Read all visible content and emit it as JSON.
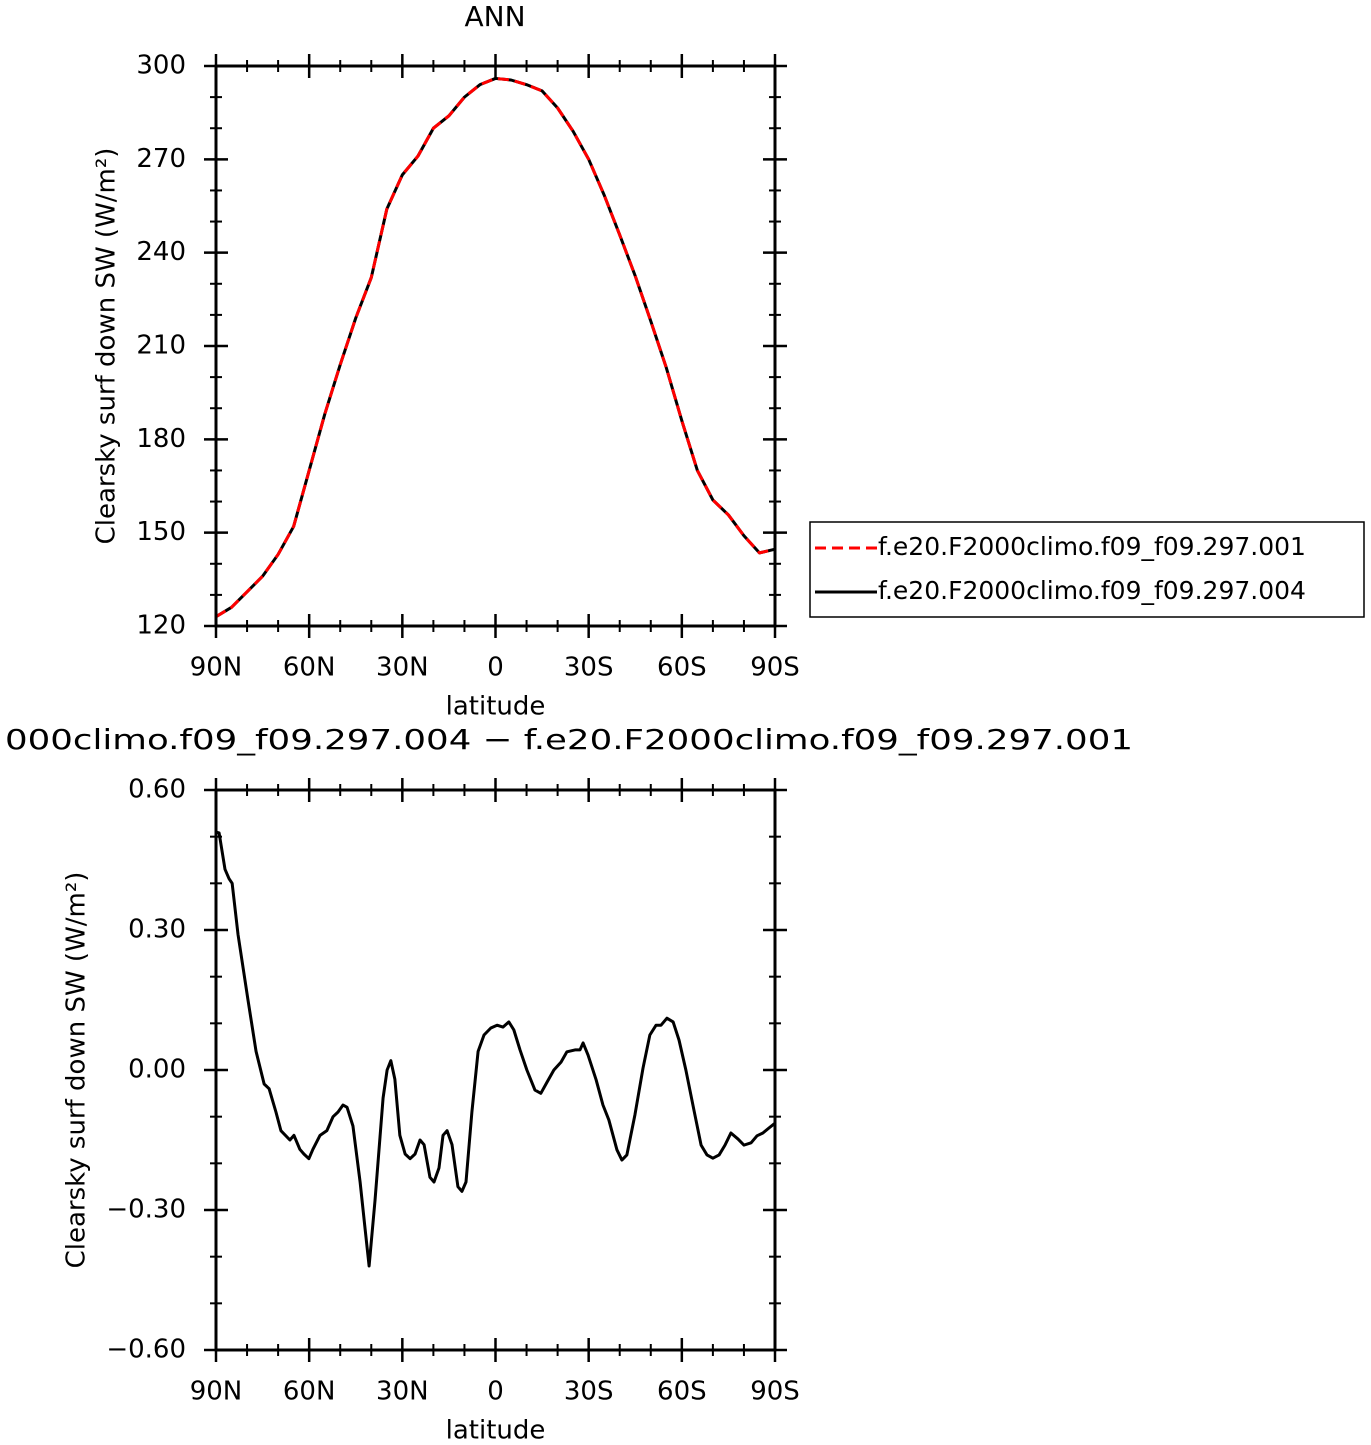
{
  "chart_data": [
    {
      "type": "line",
      "title": "ANN",
      "xlabel": "latitude",
      "ylabel": "Clearsky surf down SW (W/m²)",
      "x": [
        90,
        85,
        80,
        75,
        70,
        65,
        60,
        55,
        50,
        45,
        40,
        35,
        30,
        25,
        20,
        15,
        10,
        5,
        0,
        -5,
        -10,
        -15,
        -20,
        -25,
        -30,
        -35,
        -40,
        -45,
        -50,
        -55,
        -60,
        -65,
        -70,
        -75,
        -80,
        -85,
        -90
      ],
      "xlim": [
        90,
        -90
      ],
      "xticks": [
        {
          "value": 90,
          "label": "90N"
        },
        {
          "value": 60,
          "label": "60N"
        },
        {
          "value": 30,
          "label": "30N"
        },
        0,
        {
          "value": -30,
          "label": "30S"
        },
        {
          "value": -60,
          "label": "60S"
        },
        {
          "value": -90,
          "label": "90S"
        }
      ],
      "xminorticks": [
        80,
        70,
        50,
        40,
        20,
        10,
        -10,
        -20,
        -40,
        -50,
        -70,
        -80
      ],
      "ylim": [
        120,
        300
      ],
      "yticks": [
        120,
        150,
        180,
        210,
        240,
        270,
        300
      ],
      "yminorticks": [
        130,
        140,
        160,
        170,
        190,
        200,
        220,
        230,
        250,
        260,
        280,
        290
      ],
      "legend": "right",
      "series": [
        {
          "name": "f.e20.F2000climo.f09_f09.297.001",
          "color": "#ff0000",
          "linestyle": "dashed",
          "values": [
            123,
            126,
            131,
            136,
            143,
            152,
            170,
            188,
            204,
            219,
            232,
            254,
            265,
            271,
            280,
            284,
            290,
            294,
            296,
            295.5,
            294,
            292,
            286.5,
            279,
            270,
            258.5,
            245.7,
            232.5,
            218,
            203,
            186,
            170,
            160.5,
            155.7,
            149,
            143.5,
            144.7
          ]
        },
        {
          "name": "f.e20.F2000climo.f09_f09.297.004",
          "color": "#000000",
          "linestyle": "solid",
          "values": [
            123,
            126,
            131,
            136,
            143,
            152,
            170,
            188,
            204,
            219,
            232,
            254,
            265,
            271,
            280,
            284,
            290,
            294,
            296,
            295.5,
            294,
            292,
            286.5,
            279,
            270,
            258.5,
            245.7,
            232.5,
            218,
            203,
            186,
            170,
            160.5,
            155.7,
            149,
            143.5,
            144.7
          ]
        }
      ]
    },
    {
      "type": "line",
      "title": "000climo.f09_f09.297.004 − f.e20.F2000climo.f09_f09.297.001",
      "xlabel": "latitude",
      "ylabel": "Clearsky surf down SW (W/m²)",
      "x": [
        90,
        89,
        87.1,
        85.8,
        84.8,
        82.9,
        79.7,
        77.1,
        74.5,
        72.9,
        70.7,
        69.1,
        66.2,
        64.9,
        63.0,
        61.7,
        60.1,
        58.8,
        56.5,
        54.3,
        52.3,
        50.7,
        49.1,
        47.8,
        45.9,
        43.6,
        42.0,
        40.7,
        38.8,
        36.2,
        34.9,
        33.7,
        32.4,
        30.8,
        29.1,
        27.5,
        25.9,
        24.3,
        23.0,
        21.1,
        19.8,
        18.2,
        16.9,
        15.6,
        14.0,
        12.1,
        10.8,
        9.5,
        7.6,
        5.6,
        3.7,
        1.5,
        -0.5,
        -2.4,
        -4.3,
        -5.9,
        -7.9,
        -10.1,
        -12.7,
        -14.6,
        -16.6,
        -18.8,
        -21.1,
        -23.0,
        -25.6,
        -27.2,
        -28.2,
        -29.8,
        -32.4,
        -34.6,
        -36.5,
        -39.1,
        -40.7,
        -42.3,
        -44.9,
        -47.5,
        -49.7,
        -51.7,
        -53.3,
        -55.2,
        -57.2,
        -59.1,
        -61.3,
        -63.9,
        -66.2,
        -68.1,
        -70.0,
        -72.0,
        -73.9,
        -75.8,
        -78.1,
        -80.0,
        -82.3,
        -84.2,
        -86.1,
        -88.1,
        -90
      ],
      "xlim": [
        90,
        -90
      ],
      "xticks": [
        {
          "value": 90,
          "label": "90N"
        },
        {
          "value": 60,
          "label": "60N"
        },
        {
          "value": 30,
          "label": "30N"
        },
        0,
        {
          "value": -30,
          "label": "30S"
        },
        {
          "value": -60,
          "label": "60S"
        },
        {
          "value": -90,
          "label": "90S"
        }
      ],
      "xminorticks": [
        80,
        70,
        50,
        40,
        20,
        10,
        -10,
        -20,
        -40,
        -50,
        -70,
        -80
      ],
      "ylim": [
        -0.6,
        0.6
      ],
      "yticks": [
        {
          "value": -0.6,
          "label": "−0.60"
        },
        {
          "value": -0.3,
          "label": "−0.30"
        },
        {
          "value": 0,
          "label": "0.00"
        },
        {
          "value": 0.3,
          "label": "0.30"
        },
        {
          "value": 0.6,
          "label": "0.60"
        }
      ],
      "yminorticks": [
        -0.5,
        -0.4,
        -0.2,
        -0.1,
        0.1,
        0.2,
        0.4,
        0.5
      ],
      "series": [
        {
          "color": "#000000",
          "linestyle": "solid",
          "values": [
            0.51,
            0.508,
            0.43,
            0.41,
            0.4,
            0.29,
            0.15,
            0.04,
            -0.03,
            -0.04,
            -0.09,
            -0.13,
            -0.15,
            -0.14,
            -0.17,
            -0.18,
            -0.19,
            -0.17,
            -0.14,
            -0.13,
            -0.1,
            -0.09,
            -0.075,
            -0.08,
            -0.12,
            -0.24,
            -0.34,
            -0.42,
            -0.28,
            -0.06,
            0.0,
            0.02,
            -0.02,
            -0.14,
            -0.18,
            -0.19,
            -0.18,
            -0.15,
            -0.16,
            -0.23,
            -0.24,
            -0.21,
            -0.14,
            -0.13,
            -0.16,
            -0.25,
            -0.26,
            -0.24,
            -0.09,
            0.04,
            0.075,
            0.09,
            0.096,
            0.092,
            0.103,
            0.086,
            0.043,
            0.0,
            -0.043,
            -0.05,
            -0.026,
            0.0,
            0.017,
            0.039,
            0.043,
            0.043,
            0.058,
            0.032,
            -0.021,
            -0.075,
            -0.107,
            -0.171,
            -0.193,
            -0.182,
            -0.096,
            0.004,
            0.075,
            0.096,
            0.096,
            0.111,
            0.103,
            0.064,
            0.0,
            -0.086,
            -0.161,
            -0.182,
            -0.189,
            -0.182,
            -0.161,
            -0.135,
            -0.148,
            -0.161,
            -0.156,
            -0.141,
            -0.135,
            -0.124,
            -0.114
          ]
        }
      ]
    }
  ]
}
